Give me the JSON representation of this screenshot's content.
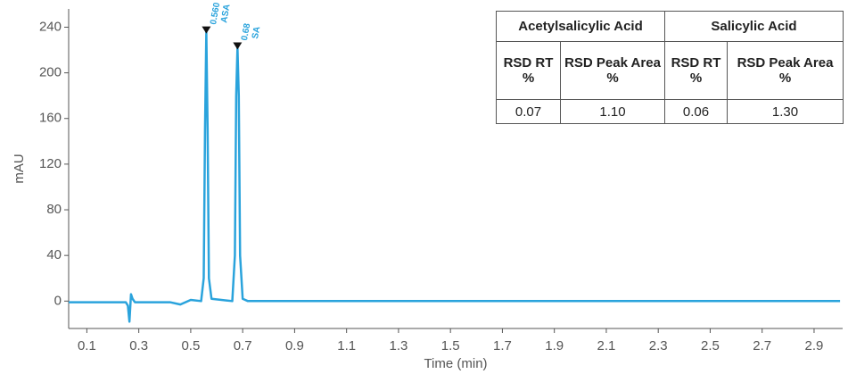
{
  "chart_data": {
    "type": "line",
    "x": [
      0.03,
      0.25,
      0.258,
      0.264,
      0.27,
      0.276,
      0.285,
      0.35,
      0.42,
      0.46,
      0.5,
      0.54,
      0.55,
      0.555,
      0.56,
      0.565,
      0.57,
      0.58,
      0.66,
      0.67,
      0.675,
      0.68,
      0.685,
      0.69,
      0.7,
      0.72,
      1.5,
      3.0
    ],
    "values": [
      -1,
      -1,
      -4,
      -18,
      6,
      2,
      -1,
      -1,
      -1,
      -3,
      1,
      0,
      20,
      150,
      236,
      150,
      20,
      2,
      0,
      40,
      180,
      222,
      180,
      40,
      2,
      0,
      0,
      0
    ],
    "color": "#2aa3dc",
    "xlim": [
      0.03,
      3.01
    ],
    "ylim": [
      -24,
      256
    ],
    "xticks": [
      0.1,
      0.3,
      0.5,
      0.7,
      0.9,
      1.1,
      1.3,
      1.5,
      1.7,
      1.9,
      2.1,
      2.3,
      2.5,
      2.7,
      2.9
    ],
    "yticks": [
      0,
      40,
      80,
      120,
      160,
      200,
      240
    ],
    "xlabel": "Time (min)",
    "ylabel": "mAU",
    "peaks": [
      {
        "rt": 0.56,
        "height": 236,
        "rt_label": "0.560",
        "name": "ASA"
      },
      {
        "rt": 0.68,
        "height": 222,
        "rt_label": "0.68",
        "name": "SA"
      }
    ],
    "table": {
      "groups": [
        "Acetylsalicylic Acid",
        "Salicylic Acid"
      ],
      "columns": [
        "RSD RT %",
        "RSD Peak Area %",
        "RSD RT %",
        "RSD Peak Area %"
      ],
      "rows": [
        [
          "0.07",
          "1.10",
          "0.06",
          "1.30"
        ]
      ]
    }
  }
}
